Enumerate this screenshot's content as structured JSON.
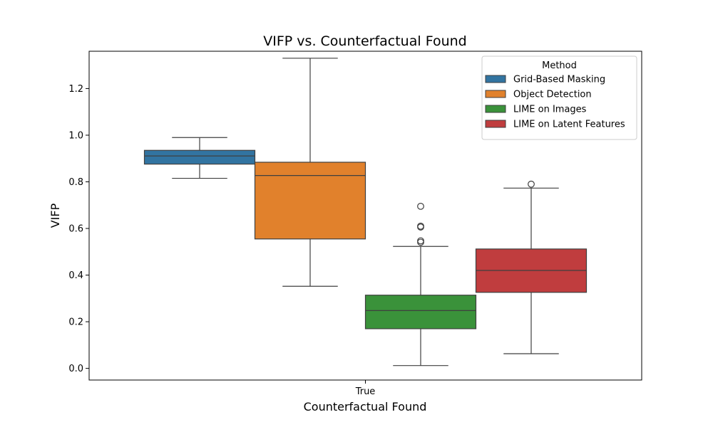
{
  "chart_data": {
    "type": "box",
    "title": "VIFP vs. Counterfactual Found",
    "xlabel": "Counterfactual Found",
    "ylabel": "VIFP",
    "categories": [
      "True"
    ],
    "ylim": [
      -0.05,
      1.36
    ],
    "yticks": [
      0.0,
      0.2,
      0.4,
      0.6,
      0.8,
      1.0,
      1.2
    ],
    "ytick_labels": [
      "0.0",
      "0.2",
      "0.4",
      "0.6",
      "0.8",
      "1.0",
      "1.2"
    ],
    "grid": false,
    "legend": {
      "title": "Method",
      "placement": "top-right"
    },
    "series": [
      {
        "name": "Grid-Based Masking",
        "color": "#3274a1",
        "whisker_low": 0.815,
        "q1": 0.876,
        "median": 0.911,
        "q3": 0.935,
        "whisker_high": 0.99,
        "outliers": []
      },
      {
        "name": "Object Detection",
        "color": "#e1812c",
        "whisker_low": 0.352,
        "q1": 0.555,
        "median": 0.827,
        "q3": 0.884,
        "whisker_high": 1.33,
        "outliers": []
      },
      {
        "name": "LIME on Images",
        "color": "#3a923a",
        "whisker_low": 0.012,
        "q1": 0.17,
        "median": 0.248,
        "q3": 0.314,
        "whisker_high": 0.523,
        "outliers": [
          0.541,
          0.547,
          0.606,
          0.61,
          0.695
        ]
      },
      {
        "name": "LIME on Latent Features",
        "color": "#c03d3e",
        "whisker_low": 0.063,
        "q1": 0.326,
        "median": 0.42,
        "q3": 0.512,
        "whisker_high": 0.773,
        "outliers": [
          0.79
        ]
      }
    ]
  }
}
